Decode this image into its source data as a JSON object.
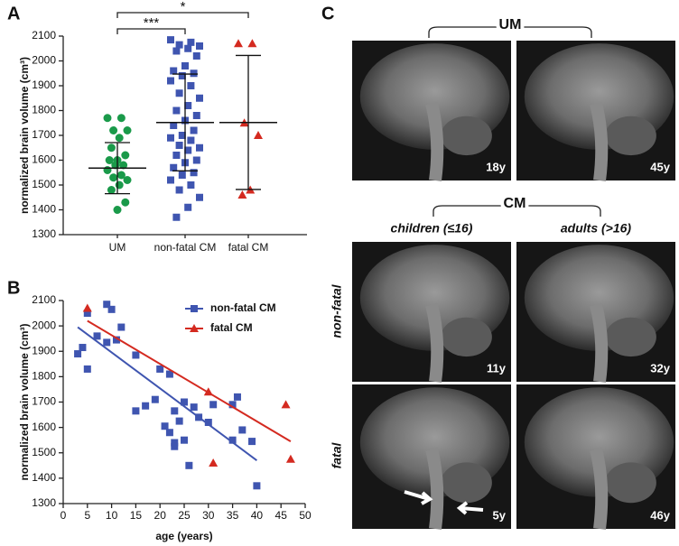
{
  "chart_data": [
    {
      "type": "strip",
      "label": "A",
      "y_label": "normalized brain volume (cm³)",
      "categories": [
        "UM",
        "non-fatal CM",
        "fatal CM"
      ],
      "ylim": [
        1300,
        2100
      ],
      "yticks": [
        1300,
        1400,
        1500,
        1600,
        1700,
        1800,
        1900,
        2000,
        2100
      ],
      "series": [
        {
          "name": "UM",
          "color": "#1a9a4a",
          "marker": "circle",
          "values": [
            1770,
            1770,
            1720,
            1720,
            1690,
            1650,
            1620,
            1600,
            1600,
            1580,
            1580,
            1560,
            1540,
            1530,
            1520,
            1500,
            1480,
            1430,
            1400
          ],
          "mean": 1568,
          "sd": 103
        },
        {
          "name": "non-fatal CM",
          "color": "#3f55b0",
          "marker": "square",
          "values": [
            2085,
            2075,
            2065,
            2060,
            2050,
            2040,
            2020,
            1980,
            1960,
            1950,
            1940,
            1920,
            1900,
            1870,
            1850,
            1820,
            1800,
            1780,
            1760,
            1740,
            1720,
            1700,
            1690,
            1680,
            1660,
            1650,
            1640,
            1620,
            1600,
            1590,
            1570,
            1550,
            1540,
            1520,
            1500,
            1480,
            1450,
            1410,
            1370
          ],
          "mean": 1752,
          "sd": 195
        },
        {
          "name": "fatal CM",
          "color": "#d42a20",
          "marker": "triangle",
          "values": [
            2070,
            2070,
            1750,
            1700,
            1480,
            1460
          ],
          "mean": 1752,
          "sd": 270
        }
      ],
      "annotations": [
        "***",
        "*"
      ]
    },
    {
      "type": "scatter",
      "label": "B",
      "x_label": "age (years)",
      "y_label": "normalized brain volume (cm³)",
      "xlim": [
        0,
        50
      ],
      "xticks": [
        0,
        5,
        10,
        15,
        20,
        25,
        30,
        35,
        40,
        45,
        50
      ],
      "ylim": [
        1300,
        2100
      ],
      "yticks": [
        1300,
        1400,
        1500,
        1600,
        1700,
        1800,
        1900,
        2000,
        2100
      ],
      "legend": "upper right",
      "series": [
        {
          "name": "non-fatal CM",
          "color": "#3f55b0",
          "marker": "square",
          "x": [
            3,
            4,
            5,
            5,
            7,
            9,
            9,
            10,
            11,
            12,
            15,
            15,
            17,
            19,
            20,
            21,
            22,
            22,
            23,
            23,
            23,
            24,
            25,
            25,
            26,
            27,
            28,
            30,
            31,
            35,
            35,
            36,
            37,
            39,
            40
          ],
          "values": [
            1890,
            1915,
            1830,
            2050,
            1960,
            1935,
            2085,
            2065,
            1945,
            1995,
            1885,
            1665,
            1685,
            1710,
            1830,
            1605,
            1810,
            1580,
            1665,
            1540,
            1525,
            1625,
            1550,
            1700,
            1450,
            1680,
            1640,
            1620,
            1690,
            1690,
            1550,
            1720,
            1590,
            1545,
            1370
          ],
          "fit": {
            "x": [
              3,
              40
            ],
            "y": [
              1995,
              1470
            ]
          }
        },
        {
          "name": "fatal CM",
          "color": "#d42a20",
          "marker": "triangle",
          "x": [
            5,
            30,
            31,
            46,
            47
          ],
          "values": [
            2070,
            1740,
            1460,
            1690,
            1475
          ],
          "fit": {
            "x": [
              5,
              47
            ],
            "y": [
              2020,
              1545
            ]
          }
        }
      ]
    }
  ],
  "panel_c": {
    "label": "C",
    "groups": [
      "UM",
      "CM"
    ],
    "columns": [
      "children (≤16)",
      "adults (>16)"
    ],
    "rows": [
      "non-fatal",
      "fatal"
    ],
    "ages": [
      "18y",
      "45y",
      "11y",
      "32y",
      "5y",
      "46y"
    ]
  }
}
